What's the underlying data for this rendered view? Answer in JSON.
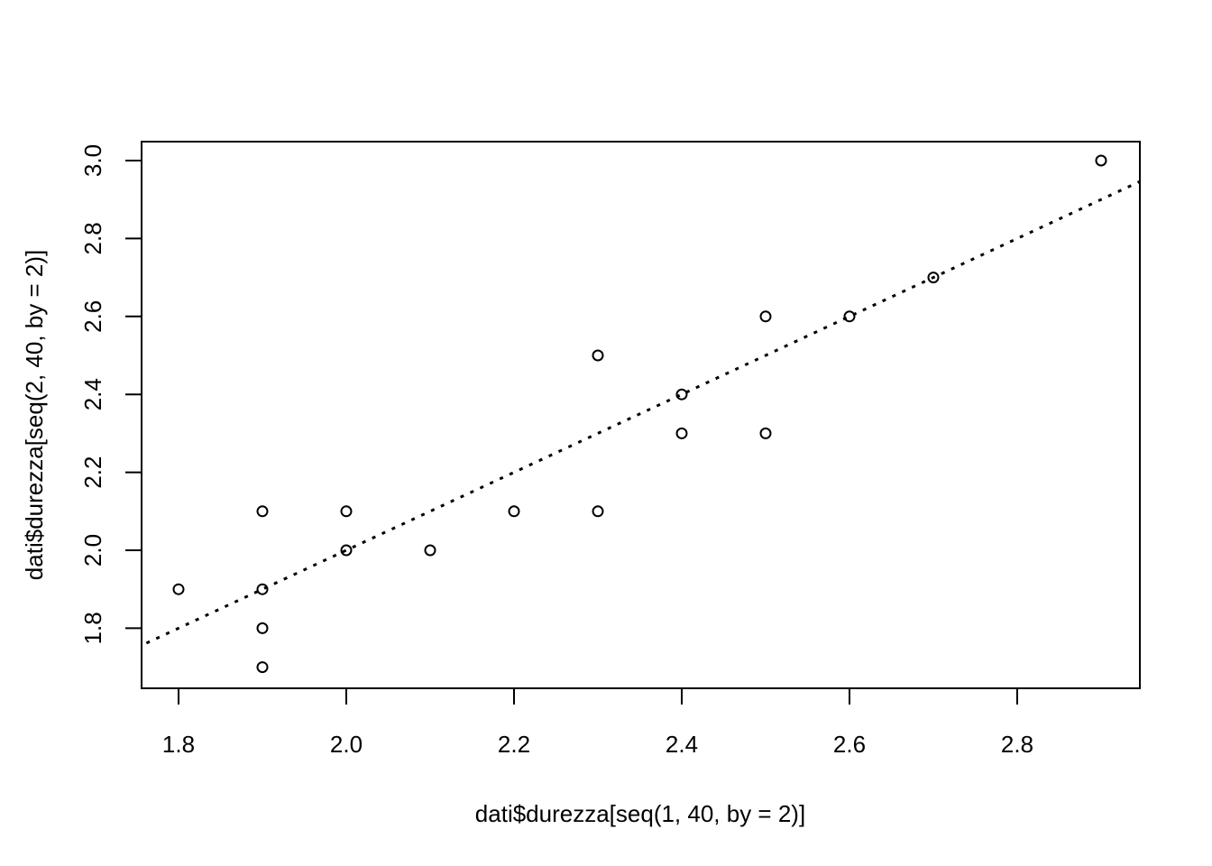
{
  "chart_data": {
    "type": "scatter",
    "title": "",
    "xlabel": "dati$durezza[seq(1, 40, by = 2)]",
    "ylabel": "dati$durezza[seq(2, 40, by = 2)]",
    "xlim": [
      1.8,
      2.9
    ],
    "ylim": [
      1.7,
      3.0
    ],
    "x_ticks": [
      "1.8",
      "2.0",
      "2.2",
      "2.4",
      "2.6",
      "2.8"
    ],
    "y_ticks": [
      "1.8",
      "2.0",
      "2.2",
      "2.4",
      "2.6",
      "2.8",
      "3.0"
    ],
    "points": [
      {
        "x": 1.8,
        "y": 1.9
      },
      {
        "x": 1.9,
        "y": 2.1
      },
      {
        "x": 1.9,
        "y": 1.9
      },
      {
        "x": 1.9,
        "y": 1.8
      },
      {
        "x": 1.9,
        "y": 1.7
      },
      {
        "x": 2.0,
        "y": 2.1
      },
      {
        "x": 2.0,
        "y": 2.0
      },
      {
        "x": 2.1,
        "y": 2.0
      },
      {
        "x": 2.2,
        "y": 2.1
      },
      {
        "x": 2.3,
        "y": 2.5
      },
      {
        "x": 2.3,
        "y": 2.1
      },
      {
        "x": 2.4,
        "y": 2.4
      },
      {
        "x": 2.4,
        "y": 2.3
      },
      {
        "x": 2.5,
        "y": 2.6
      },
      {
        "x": 2.5,
        "y": 2.3
      },
      {
        "x": 2.6,
        "y": 2.6
      },
      {
        "x": 2.7,
        "y": 2.7
      },
      {
        "x": 2.9,
        "y": 3.0
      }
    ],
    "reference_line": {
      "intercept": 0,
      "slope": 1,
      "style": "dotted"
    },
    "grid": false,
    "legend": "none"
  }
}
